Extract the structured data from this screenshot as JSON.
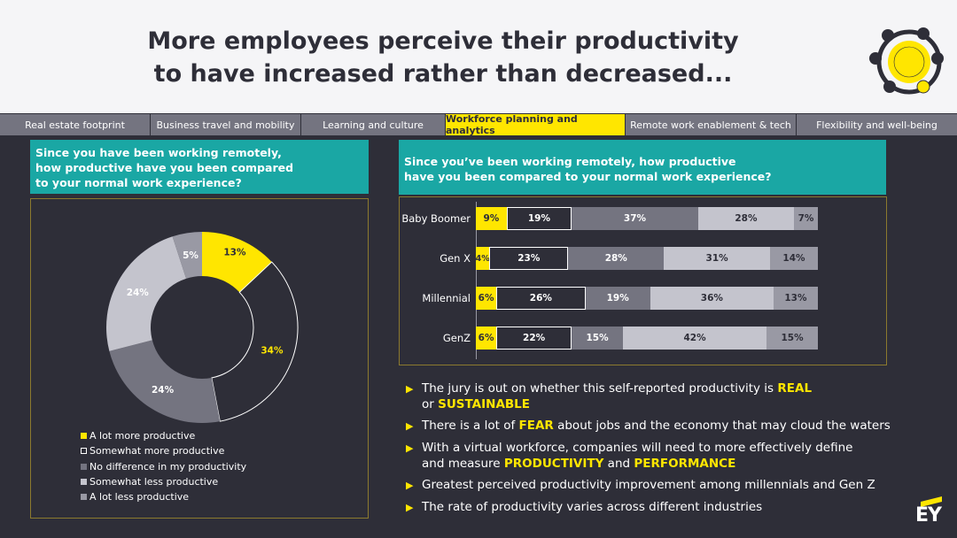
{
  "header": {
    "title_line1": "More employees perceive their productivity",
    "title_line2": "to have increased rather than decreased..."
  },
  "tabs": [
    {
      "label": "Real estate footprint"
    },
    {
      "label": "Business travel and mobility"
    },
    {
      "label": "Learning and culture"
    },
    {
      "label": "Workforce planning and analytics"
    },
    {
      "label": "Remote work enablement & tech"
    },
    {
      "label": "Flexibility and well-being"
    }
  ],
  "active_tab": "Workforce planning and analytics",
  "left_question": {
    "line1": "Since you have been working remotely,",
    "line2": "how productive have you been compared",
    "line3": "to your normal work experience?"
  },
  "right_question": {
    "line1": "Since you’ve been working remotely, how productive",
    "line2": "have you been compared to your normal work experience?"
  },
  "colors": {
    "yellow": "#ffe600",
    "dark": "#2e2e38",
    "mid_gray": "#747480",
    "light_gray": "#c4c4cd",
    "gray": "#9999a4",
    "teal": "#1aa7a4"
  },
  "chart_data": [
    {
      "type": "pie",
      "variant": "donut",
      "categories": [
        "A lot more productive",
        "Somewhat more productive",
        "No difference in my productivity",
        "Somewhat less productive",
        "A lot less productive"
      ],
      "values": [
        13,
        34,
        24,
        24,
        5
      ],
      "labels": [
        "13%",
        "34%",
        "24%",
        "24%",
        "5%"
      ],
      "legend_position": "bottom-left"
    },
    {
      "type": "bar",
      "orientation": "horizontal",
      "stacked": true,
      "categories": [
        "Baby Boomer",
        "Gen X",
        "Millennial",
        "GenZ"
      ],
      "series": [
        {
          "name": "A lot more productive",
          "values": [
            9,
            4,
            6,
            6
          ],
          "labels": [
            "9%",
            "4%",
            "6%",
            "6%"
          ]
        },
        {
          "name": "Somewhat more productive",
          "values": [
            19,
            23,
            26,
            22
          ],
          "labels": [
            "19%",
            "23%",
            "26%",
            "22%"
          ]
        },
        {
          "name": "No difference in my productivity",
          "values": [
            37,
            28,
            19,
            15
          ],
          "labels": [
            "37%",
            "28%",
            "19%",
            "15%"
          ]
        },
        {
          "name": "Somewhat less productive",
          "values": [
            28,
            31,
            36,
            42
          ],
          "labels": [
            "28%",
            "31%",
            "36%",
            "42%"
          ]
        },
        {
          "name": "A lot less productive",
          "values": [
            7,
            14,
            13,
            15
          ],
          "labels": [
            "7%",
            "14%",
            "13%",
            "15%"
          ]
        }
      ],
      "xlim": [
        0,
        100
      ]
    }
  ],
  "bullets": [
    {
      "parts": [
        {
          "t": "The jury is out on whether this self-reported productivity is "
        },
        {
          "t": "REAL",
          "hl": true
        }
      ],
      "parts2": [
        {
          "t": "or "
        },
        {
          "t": "SUSTAINABLE",
          "hl": true
        }
      ]
    },
    {
      "parts": [
        {
          "t": "There is a lot of "
        },
        {
          "t": "FEAR",
          "hl": true
        },
        {
          "t": " about jobs and the economy that may cloud the waters"
        }
      ]
    },
    {
      "parts": [
        {
          "t": "With a virtual workforce, companies will need to more effectively define"
        }
      ],
      "parts2": [
        {
          "t": "and measure "
        },
        {
          "t": "PRODUCTIVITY",
          "hl": true
        },
        {
          "t": " and "
        },
        {
          "t": "PERFORMANCE",
          "hl": true
        }
      ]
    },
    {
      "parts": [
        {
          "t": "Greatest perceived productivity improvement among millennials and Gen Z"
        }
      ]
    },
    {
      "parts": [
        {
          "t": "The rate of productivity varies across different industries"
        }
      ]
    }
  ],
  "logo": {
    "text": "EY"
  }
}
